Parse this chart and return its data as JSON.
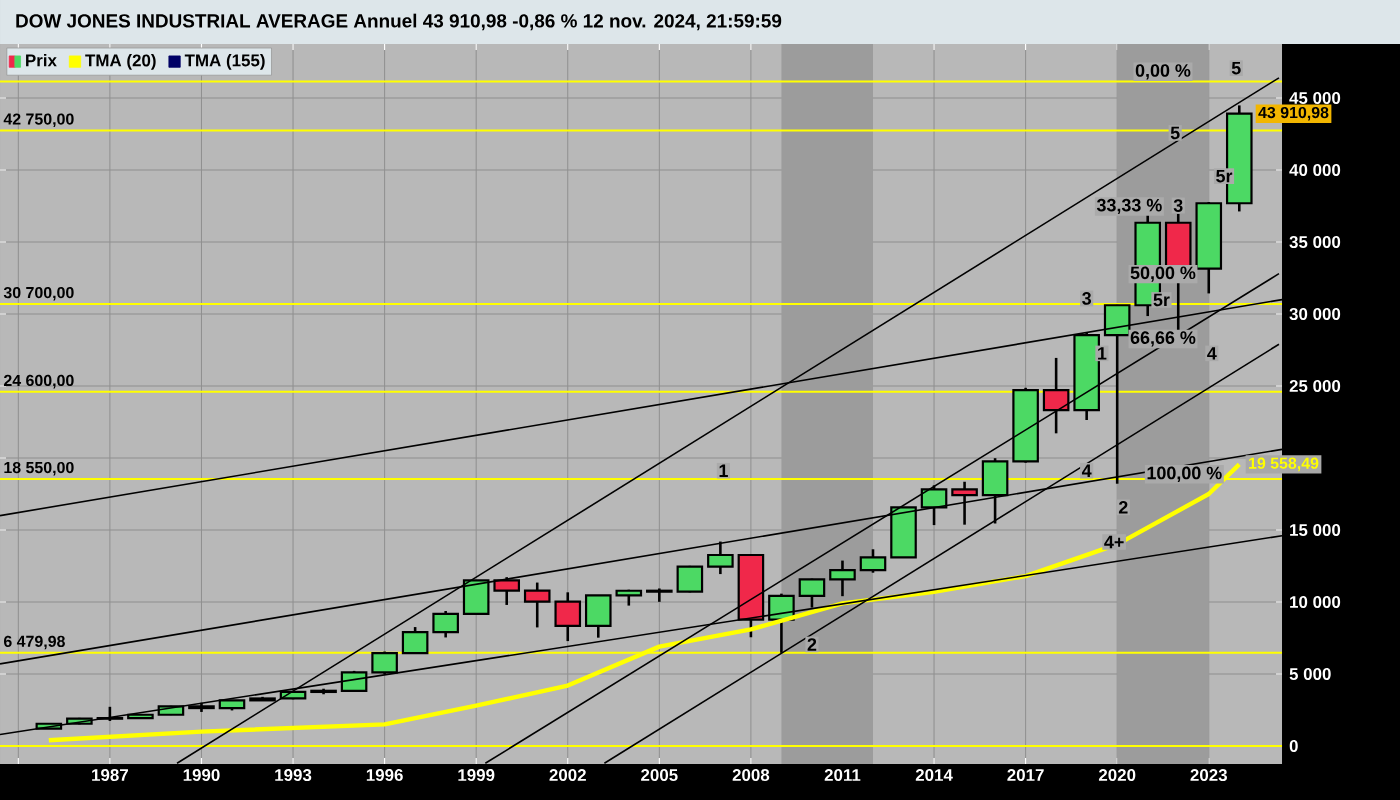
{
  "chart_data": {
    "type": "candlestick",
    "title": "DOW JONES INDUSTRIAL AVERAGE Annuel 43 910,98 -0,86 % 12 nov. 2024, 21:59:59",
    "x": [
      1985,
      1986,
      1987,
      1988,
      1989,
      1990,
      1991,
      1992,
      1993,
      1994,
      1995,
      1996,
      1997,
      1998,
      1999,
      2000,
      2001,
      2002,
      2003,
      2004,
      2005,
      2006,
      2007,
      2008,
      2009,
      2010,
      2011,
      2012,
      2013,
      2014,
      2015,
      2016,
      2017,
      2018,
      2019,
      2020,
      2021,
      2022,
      2023,
      2024
    ],
    "series": [
      {
        "name": "Prix",
        "ohlc": [
          [
            1212,
            1553,
            1185,
            1547
          ],
          [
            1547,
            1956,
            1502,
            1896
          ],
          [
            1896,
            2722,
            1739,
            1939
          ],
          [
            1939,
            2183,
            1879,
            2169
          ],
          [
            2169,
            2792,
            2145,
            2753
          ],
          [
            2753,
            3000,
            2365,
            2634
          ],
          [
            2634,
            3169,
            2470,
            3169
          ],
          [
            3169,
            3413,
            3137,
            3301
          ],
          [
            3301,
            3794,
            3242,
            3754
          ],
          [
            3754,
            3978,
            3593,
            3834
          ],
          [
            3834,
            5216,
            3832,
            5117
          ],
          [
            5117,
            6561,
            5000,
            6448
          ],
          [
            6448,
            8259,
            6391,
            7908
          ],
          [
            7908,
            9374,
            7539,
            9181
          ],
          [
            9181,
            11497,
            9120,
            11497
          ],
          [
            11497,
            11723,
            9796,
            10787
          ],
          [
            10787,
            11350,
            8236,
            10022
          ],
          [
            10022,
            10673,
            7286,
            8342
          ],
          [
            8342,
            10454,
            7524,
            10454
          ],
          [
            10454,
            10854,
            9750,
            10783
          ],
          [
            10783,
            10940,
            10012,
            10718
          ],
          [
            10718,
            12511,
            10668,
            12463
          ],
          [
            12463,
            14198,
            11939,
            13265
          ],
          [
            13265,
            13279,
            7552,
            8776
          ],
          [
            8776,
            10580,
            6470,
            10428
          ],
          [
            10428,
            11625,
            9614,
            11578
          ],
          [
            11578,
            12876,
            10404,
            12218
          ],
          [
            12218,
            13661,
            12035,
            13104
          ],
          [
            13104,
            16588,
            13104,
            16577
          ],
          [
            16577,
            18103,
            15340,
            17823
          ],
          [
            17823,
            18351,
            15370,
            17425
          ],
          [
            17425,
            19987,
            15451,
            19763
          ],
          [
            19763,
            24876,
            19677,
            24719
          ],
          [
            24719,
            26951,
            21713,
            23327
          ],
          [
            23327,
            28701,
            22639,
            28538
          ],
          [
            28538,
            30637,
            18214,
            30606
          ],
          [
            30606,
            36953,
            29857,
            36338
          ],
          [
            36338,
            36952,
            28661,
            33147
          ],
          [
            33147,
            37778,
            31430,
            37690
          ],
          [
            37690,
            44486,
            37123,
            43910.98
          ]
        ],
        "colors": [
          "#4cd964",
          "#4cd964",
          "#4cd964",
          "#4cd964",
          "#4cd964",
          "#f0284a",
          "#4cd964",
          "#4cd964",
          "#4cd964",
          "#4cd964",
          "#4cd964",
          "#4cd964",
          "#4cd964",
          "#4cd964",
          "#4cd964",
          "#f0284a",
          "#f0284a",
          "#f0284a",
          "#4cd964",
          "#4cd964",
          "#f0284a",
          "#4cd964",
          "#4cd964",
          "#f0284a",
          "#4cd964",
          "#4cd964",
          "#4cd964",
          "#4cd964",
          "#4cd964",
          "#4cd964",
          "#f0284a",
          "#4cd964",
          "#4cd964",
          "#f0284a",
          "#4cd964",
          "#4cd964",
          "#4cd964",
          "#f0284a",
          "#4cd964",
          "#4cd964"
        ],
        "value_labels": [
          null,
          null,
          null,
          null,
          null,
          null,
          null,
          null,
          null,
          null,
          null,
          null,
          null,
          null,
          null,
          null,
          null,
          null,
          null,
          null,
          null,
          null,
          null,
          null,
          null,
          null,
          null,
          null,
          null,
          null,
          null,
          null,
          null,
          null,
          null,
          null,
          null,
          null,
          null,
          "43 910,98"
        ]
      },
      {
        "name": "TMA (20)",
        "type": "line",
        "color": "#ffff00",
        "x": [
          1985,
          1990,
          1996,
          1999,
          2002,
          2005,
          2008,
          2011,
          2014,
          2017,
          2020,
          2023,
          2024
        ],
        "values": [
          400,
          1000,
          1500,
          2800,
          4200,
          6900,
          8100,
          9900,
          10700,
          11800,
          14000,
          17500,
          19558.49
        ],
        "value_labels": [
          null,
          null,
          null,
          null,
          null,
          null,
          null,
          null,
          null,
          null,
          null,
          null,
          "19 558,49"
        ]
      },
      {
        "name": "TMA (155)",
        "type": "line",
        "color": "#000066",
        "values": [
          null,
          null,
          null,
          null,
          null,
          null,
          null,
          null,
          null,
          null,
          null,
          null,
          null,
          null,
          null,
          null,
          null,
          null,
          null,
          null,
          null,
          null,
          null,
          null,
          null,
          null,
          null,
          null,
          null,
          null,
          null,
          null,
          null,
          null,
          null,
          null,
          null,
          null,
          null,
          null
        ]
      },
      {
        "type": "line",
        "color": "#000000",
        "x": [
          1989.2,
          2025.3
        ],
        "values": [
          -1200,
          46400
        ]
      },
      {
        "type": "line",
        "color": "#000000",
        "x": [
          2003.2,
          2025.3
        ],
        "values": [
          -1200,
          27900
        ]
      },
      {
        "type": "line",
        "color": "#000000",
        "x": [
          1999.3,
          2025.3
        ],
        "values": [
          -1200,
          32800
        ]
      },
      {
        "type": "line",
        "color": "#000000",
        "x": [
          1983.4,
          2025.4
        ],
        "values": [
          800,
          14600
        ]
      },
      {
        "type": "line",
        "color": "#000000",
        "x": [
          1983.4,
          2025.4
        ],
        "values": [
          5700,
          20600
        ]
      },
      {
        "type": "line",
        "color": "#000000",
        "x": [
          1983.4,
          2025.4
        ],
        "values": [
          16000,
          31000
        ]
      }
    ],
    "xlim": [
      1983.4,
      2025.4
    ],
    "ylim": [
      -1250,
      48750
    ],
    "xticks": [
      {
        "value": 1984,
        "label": null
      },
      1987,
      1990,
      1993,
      1996,
      1999,
      2002,
      2005,
      2008,
      2011,
      2014,
      2017,
      2020,
      2023
    ],
    "yticks": [
      0,
      {
        "value": 5000,
        "label": "5 000"
      },
      {
        "value": 10000,
        "label": "10 000"
      },
      {
        "value": 15000,
        "label": "15 000"
      },
      {
        "value": 20000,
        "label": null
      },
      {
        "value": 25000,
        "label": "25 000"
      },
      {
        "value": 30000,
        "label": "30 000"
      },
      {
        "value": 35000,
        "label": "35 000"
      },
      {
        "value": 40000,
        "label": "40 000"
      },
      {
        "value": 45000,
        "label": "45 000"
      }
    ],
    "ref_lines": [
      {
        "axis": "y",
        "value": 46150,
        "color": "#ffff00"
      },
      {
        "axis": "y",
        "value": 42750,
        "label": "42 750,00",
        "color": "#ffff00"
      },
      {
        "axis": "y",
        "value": 30700,
        "label": "30 700,00",
        "color": "#ffff00"
      },
      {
        "axis": "y",
        "value": 24600,
        "label": "24 600,00",
        "color": "#ffff00"
      },
      {
        "axis": "y",
        "value": 18550,
        "label": "18 550,00",
        "color": "#ffff00"
      },
      {
        "axis": "y",
        "value": 6479.98,
        "label": "6 479,98",
        "color": "#ffff00"
      },
      {
        "axis": "y",
        "value": 0,
        "color": "#ffff00"
      }
    ],
    "bands": [
      {
        "axis": "x",
        "from": 2009,
        "to": 2012,
        "color": "#9c9c9c"
      },
      {
        "axis": "x",
        "from": 2020,
        "to": 2023,
        "color": "#9c9c9c"
      }
    ],
    "annotations": [
      {
        "text": "0,00 %",
        "x": 2021.5,
        "y": 46150
      },
      {
        "text": "33,33 %",
        "x": 2020.4,
        "y": 36800
      },
      {
        "text": "50,00 %",
        "x": 2021.5,
        "y": 32100
      },
      {
        "text": "66,66 %",
        "x": 2021.5,
        "y": 27600
      },
      {
        "text": "100,00 %",
        "x": 2022.2,
        "y": 18200
      },
      {
        "text": "1",
        "x": 2007.1,
        "y": 18550
      },
      {
        "text": "2",
        "x": 2010.0,
        "y": 6479.98
      },
      {
        "text": "3",
        "x": 2019.0,
        "y": 30500
      },
      {
        "text": "5r",
        "x": 2021.45,
        "y": 30400
      },
      {
        "text": "4",
        "x": 2019.0,
        "y": 18550
      },
      {
        "text": "4+",
        "x": 2019.9,
        "y": 13600
      },
      {
        "text": "5",
        "x": 2021.9,
        "y": 42000
      },
      {
        "text": "5",
        "x": 2023.9,
        "y": 46500
      },
      {
        "text": "3",
        "x": 2022,
        "y": 36952
      },
      {
        "text": "5r",
        "x": 2023.5,
        "y": 39000
      },
      {
        "text": "1",
        "x": 2019.5,
        "y": 26700
      },
      {
        "text": "4",
        "x": 2023.1,
        "y": 26700
      },
      {
        "text": "2",
        "x": 2020.2,
        "y": 16000
      }
    ],
    "grid": true,
    "legend": "top left",
    "marker": "none"
  }
}
